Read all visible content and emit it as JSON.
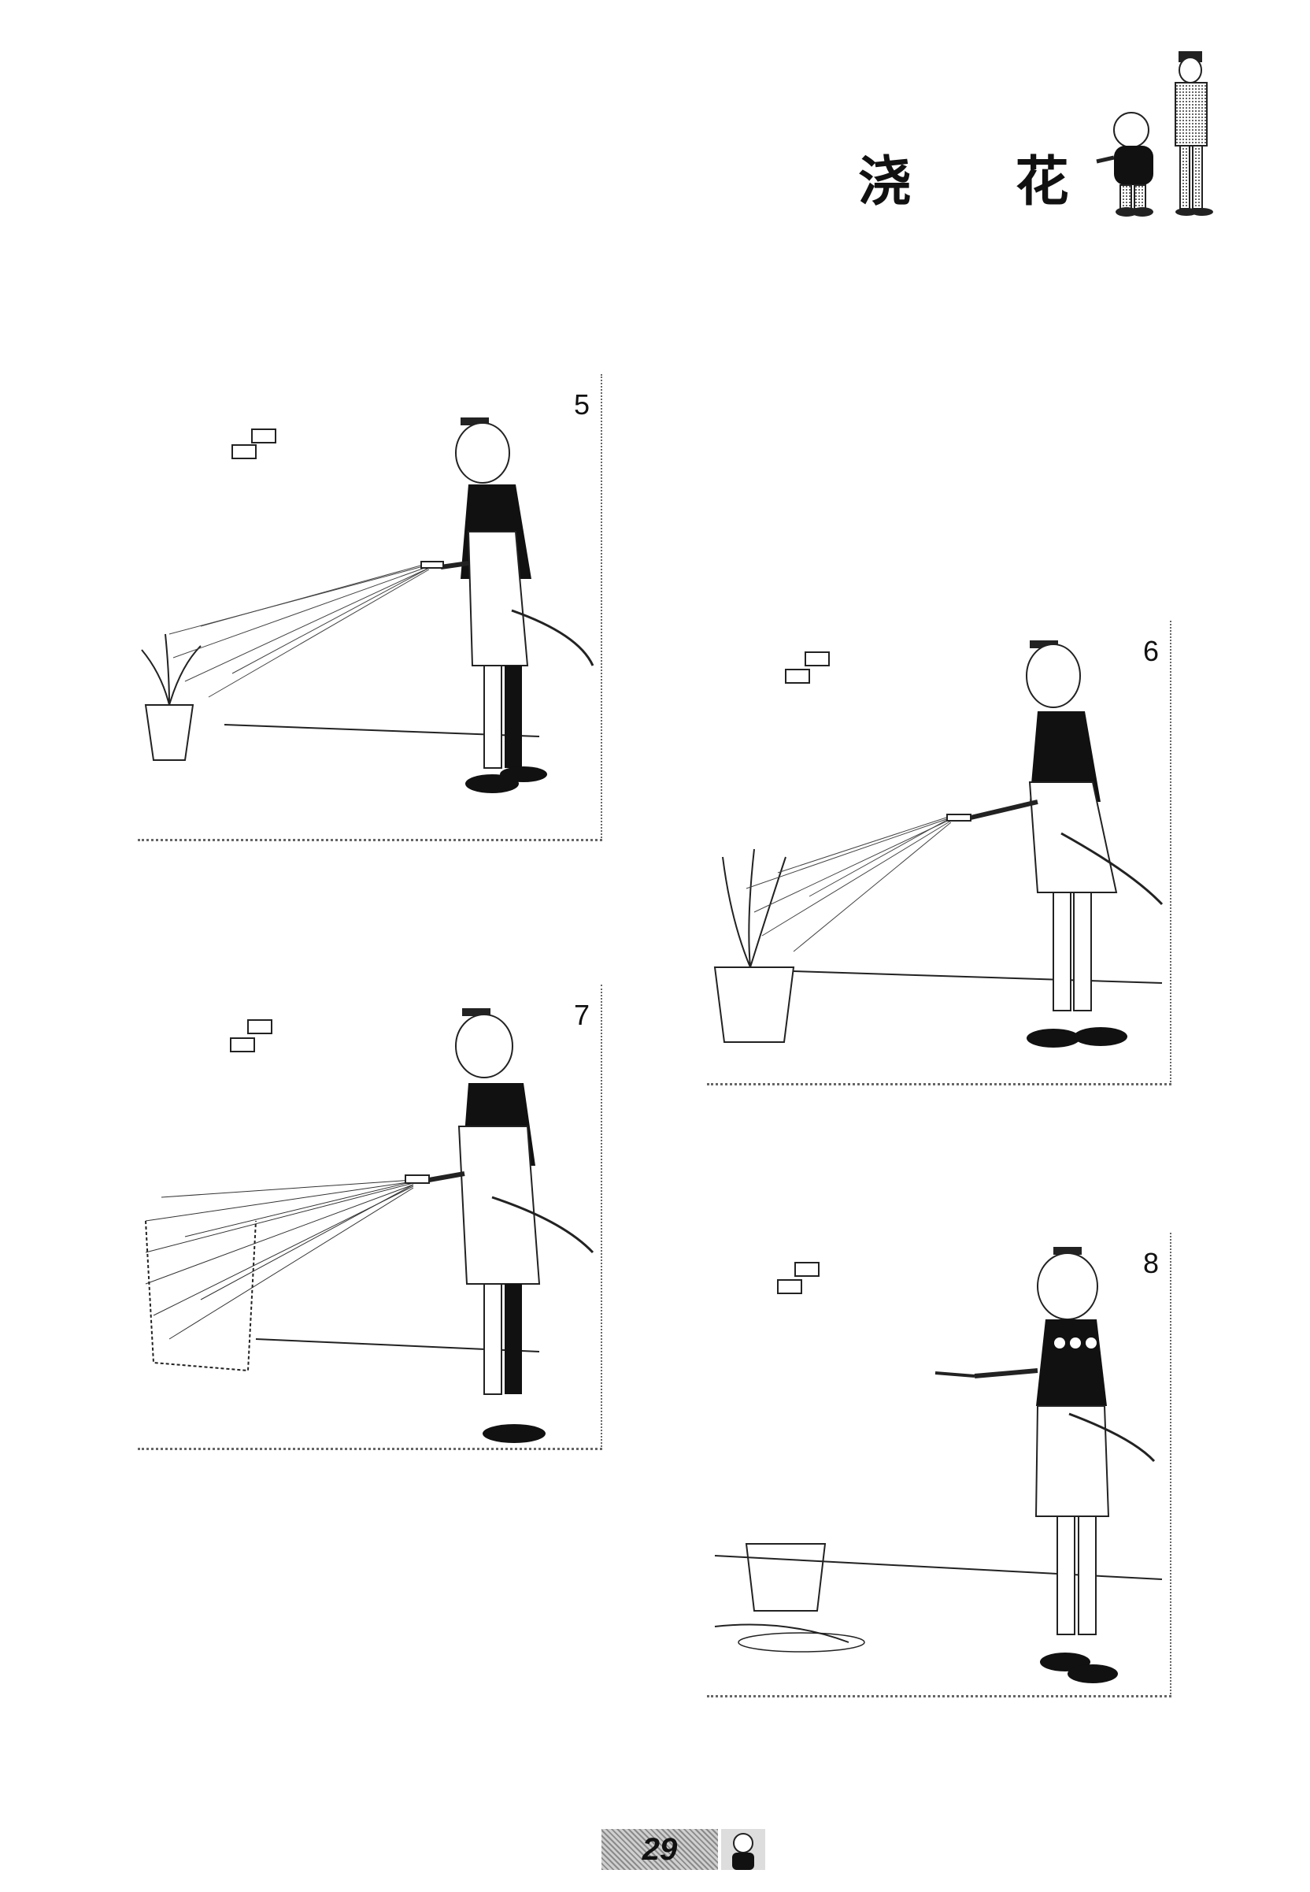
{
  "title": "浇 花",
  "panels": [
    {
      "number": "5"
    },
    {
      "number": "6"
    },
    {
      "number": "7"
    },
    {
      "number": "8"
    }
  ],
  "footer": {
    "page_number": "29"
  },
  "icons": [
    "comic-character-pair-icon",
    "mini-portrait-icon"
  ]
}
